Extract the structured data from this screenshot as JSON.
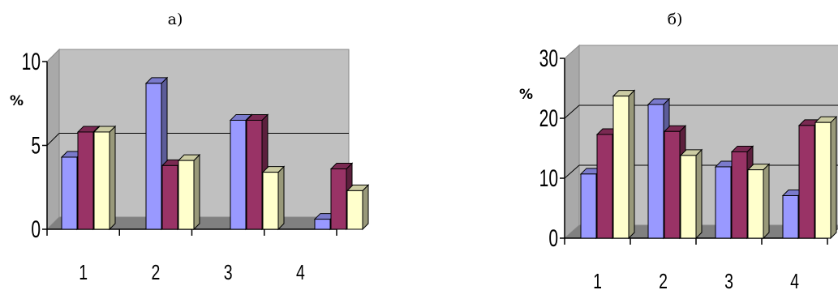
{
  "chart_data": [
    {
      "type": "bar",
      "panel_label": "а)",
      "categories": [
        "1",
        "2",
        "3",
        "4"
      ],
      "series": [
        {
          "values": [
            4.3,
            8.7,
            6.5,
            0.6
          ],
          "color": "#9999ff"
        },
        {
          "values": [
            5.8,
            3.8,
            6.5,
            3.6
          ],
          "color": "#993366"
        },
        {
          "values": [
            5.8,
            4.1,
            3.4,
            2.3
          ],
          "color": "#ffffcc"
        }
      ],
      "ylabel": "%",
      "yticks": [
        "0",
        "5",
        "10"
      ],
      "ylim": [
        0,
        10
      ],
      "grid": true
    },
    {
      "type": "bar",
      "panel_label": "б)",
      "categories": [
        "1",
        "2",
        "3",
        "4"
      ],
      "series": [
        {
          "values": [
            10.7,
            22.3,
            11.9,
            7.1
          ],
          "color": "#9999ff"
        },
        {
          "values": [
            17.3,
            17.8,
            14.4,
            18.8
          ],
          "color": "#993366"
        },
        {
          "values": [
            23.7,
            13.8,
            11.4,
            19.3
          ],
          "color": "#ffffcc"
        }
      ],
      "ylabel": "%",
      "yticks": [
        "0",
        "10",
        "20",
        "30"
      ],
      "ylim": [
        0,
        30
      ],
      "grid": true
    }
  ]
}
